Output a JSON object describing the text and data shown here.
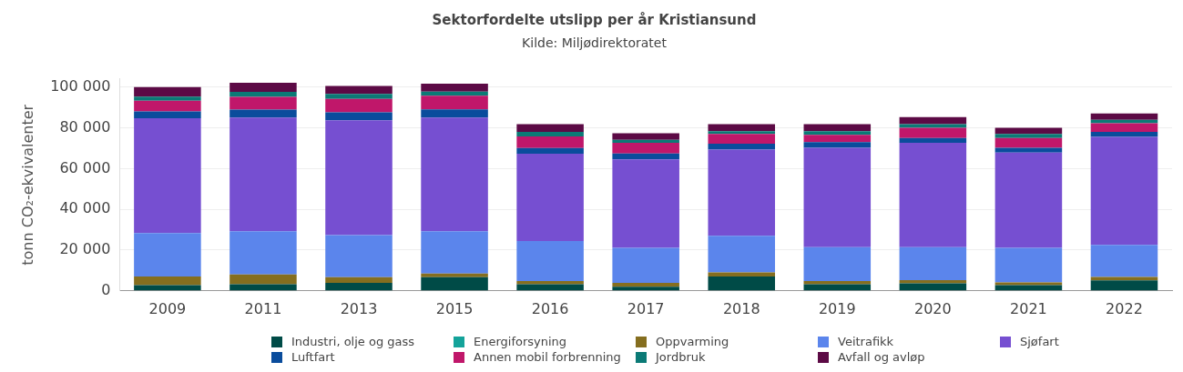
{
  "chart_data": {
    "type": "bar",
    "title": "Sektorfordelte utslipp per år Kristiansund",
    "subtitle": "Kilde: Miljødirektoratet",
    "ylabel": "tonn CO₂-ekvivalenter",
    "stacked": true,
    "legend": "bottom",
    "grid": "y",
    "categories": [
      "2009",
      "2011",
      "2013",
      "2015",
      "2016",
      "2017",
      "2018",
      "2019",
      "2020",
      "2021",
      "2022"
    ],
    "ylim": [
      0,
      104000
    ],
    "yticks": [
      {
        "value": 0,
        "label": "0"
      },
      {
        "value": 20000,
        "label": "20 000"
      },
      {
        "value": 40000,
        "label": "40 000"
      },
      {
        "value": 60000,
        "label": "60 000"
      },
      {
        "value": 80000,
        "label": "80 000"
      },
      {
        "value": 100000,
        "label": "100 000"
      }
    ],
    "series": [
      {
        "name": "Industri, olje og gass",
        "color": "#004b47",
        "values": [
          2800,
          3300,
          3900,
          6700,
          3300,
          2000,
          7100,
          3300,
          3700,
          2800,
          5100
        ]
      },
      {
        "name": "Energiforsyning",
        "color": "#14a39a",
        "values": [
          0,
          0,
          0,
          0,
          0,
          0,
          0,
          0,
          0,
          0,
          0
        ]
      },
      {
        "name": "Oppvarming",
        "color": "#856e1f",
        "values": [
          4300,
          4800,
          2800,
          1800,
          1500,
          1900,
          2000,
          1500,
          1600,
          1400,
          1700
        ]
      },
      {
        "name": "Veitrafikk",
        "color": "#5b85ec",
        "values": [
          21300,
          21200,
          20700,
          20800,
          19700,
          17200,
          17900,
          16700,
          16200,
          16900,
          15800
        ]
      },
      {
        "name": "Sjøfart",
        "color": "#764fd1",
        "values": [
          56300,
          55800,
          56300,
          55800,
          42800,
          43400,
          42300,
          48700,
          51200,
          46800,
          53000
        ]
      },
      {
        "name": "Luftfart",
        "color": "#0a4c9c",
        "values": [
          3400,
          3900,
          3900,
          4000,
          2800,
          2900,
          2900,
          2800,
          2300,
          2300,
          2400
        ]
      },
      {
        "name": "Annen mobil forbrenning",
        "color": "#c0176a",
        "values": [
          5200,
          6200,
          6600,
          6700,
          5700,
          5300,
          4800,
          3600,
          5000,
          4800,
          4300
        ]
      },
      {
        "name": "Jordbruk",
        "color": "#0b7a76",
        "values": [
          2000,
          2500,
          2500,
          2000,
          2200,
          1400,
          1400,
          1800,
          1800,
          2000,
          1600
        ]
      },
      {
        "name": "Avfall og avløp",
        "color": "#5c0a45",
        "values": [
          4700,
          4400,
          3900,
          3900,
          3800,
          3200,
          3400,
          3400,
          3500,
          3000,
          3200
        ]
      }
    ]
  }
}
